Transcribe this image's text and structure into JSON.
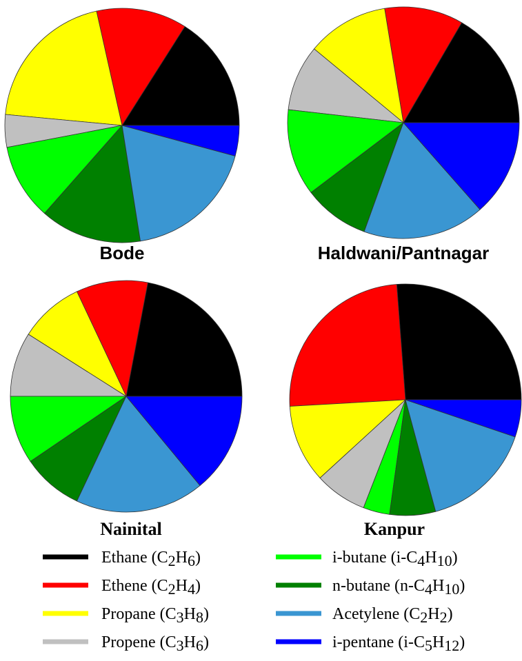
{
  "chart_data": [
    {
      "type": "pie",
      "title": "Bode",
      "categories": [
        "Ethane (C2H6)",
        "Ethene (C2H4)",
        "Propane (C3H8)",
        "Propene (C3H6)",
        "i-butane (i-C4H10)",
        "n-butane (n-C4H10)",
        "Acetylene (C2H2)",
        "i-pentane (i-C5H12)"
      ],
      "colors": [
        "#000000",
        "#ff0000",
        "#ffff00",
        "#c0c0c0",
        "#00ff00",
        "#008000",
        "#3a96d2",
        "#0000ff"
      ],
      "values": [
        16,
        12.5,
        20,
        4.5,
        10.5,
        14,
        18.3,
        4.2
      ]
    },
    {
      "type": "pie",
      "title": "Haldwani/Pantnagar",
      "categories": [
        "Ethane (C2H6)",
        "Ethene (C2H4)",
        "Propane (C3H8)",
        "Propene (C3H6)",
        "i-butane (i-C4H10)",
        "n-butane (n-C4H10)",
        "Acetylene (C2H2)",
        "i-pentane (i-C5H12)"
      ],
      "colors": [
        "#000000",
        "#ff0000",
        "#ffff00",
        "#c0c0c0",
        "#00ff00",
        "#008000",
        "#3a96d2",
        "#0000ff"
      ],
      "values": [
        16.6,
        11,
        11.4,
        9.2,
        12.1,
        9.2,
        17,
        13.5
      ]
    },
    {
      "type": "pie",
      "title": "Nainital",
      "categories": [
        "Ethane (C2H6)",
        "Ethene (C2H4)",
        "Propane (C3H8)",
        "Propene (C3H6)",
        "i-butane (i-C4H10)",
        "n-butane (n-C4H10)",
        "Acetylene (C2H2)",
        "i-pentane (i-C5H12)"
      ],
      "colors": [
        "#000000",
        "#ff0000",
        "#ffff00",
        "#c0c0c0",
        "#00ff00",
        "#008000",
        "#3a96d2",
        "#0000ff"
      ],
      "values": [
        22,
        10,
        9,
        9,
        9.5,
        8.5,
        18,
        14
      ]
    },
    {
      "type": "pie",
      "title": "Kanpur",
      "categories": [
        "Ethane (C2H6)",
        "Ethene (C2H4)",
        "Propane (C3H8)",
        "Propene (C3H6)",
        "i-butane (i-C4H10)",
        "n-butane (n-C4H10)",
        "Acetylene (C2H2)",
        "i-pentane (i-C5H12)"
      ],
      "colors": [
        "#000000",
        "#ff0000",
        "#ffff00",
        "#c0c0c0",
        "#00ff00",
        "#008000",
        "#3a96d2",
        "#0000ff"
      ],
      "values": [
        26.2,
        24.7,
        10.9,
        7.3,
        3.7,
        6.4,
        15.6,
        5.2
      ]
    }
  ]
}
